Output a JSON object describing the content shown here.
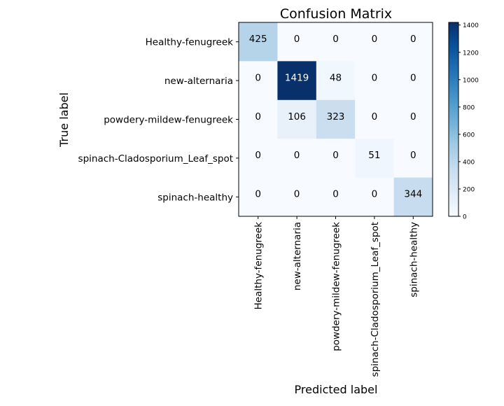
{
  "chart_data": {
    "type": "heatmap",
    "title": "Confusion Matrix",
    "xlabel": "Predicted label",
    "ylabel": "True label",
    "x_categories": [
      "Healthy-fenugreek",
      "new-alternaria",
      "powdery-mildew-fenugreek",
      "spinach-Cladosporium_Leaf_spot",
      "spinach-healthy"
    ],
    "y_categories": [
      "Healthy-fenugreek",
      "new-alternaria",
      "powdery-mildew-fenugreek",
      "spinach-Cladosporium_Leaf_spot",
      "spinach-healthy"
    ],
    "values": [
      [
        425,
        0,
        0,
        0,
        0
      ],
      [
        0,
        1419,
        48,
        0,
        0
      ],
      [
        0,
        106,
        323,
        0,
        0
      ],
      [
        0,
        0,
        0,
        51,
        0
      ],
      [
        0,
        0,
        0,
        0,
        344
      ]
    ],
    "colormap": "Blues",
    "colorbar": {
      "range": [
        0,
        1419
      ],
      "ticks": [
        0,
        200,
        400,
        600,
        800,
        1000,
        1200,
        1400
      ]
    },
    "text_color_dark": "#000000",
    "text_color_light": "#ffffff"
  }
}
